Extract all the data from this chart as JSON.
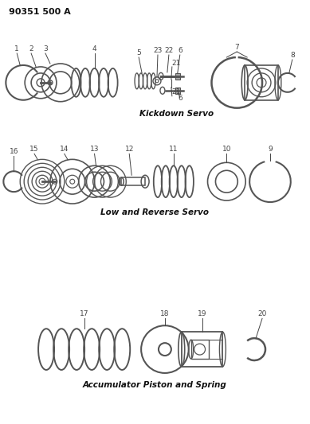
{
  "title": "90351 500 A",
  "bg_color": "#ffffff",
  "section1_label": "Kickdown Servo",
  "section2_label": "Low and Reverse Servo",
  "section3_label": "Accumulator Piston and Spring",
  "lfs": 6.5,
  "line_color": "#444444",
  "part_color": "#555555"
}
